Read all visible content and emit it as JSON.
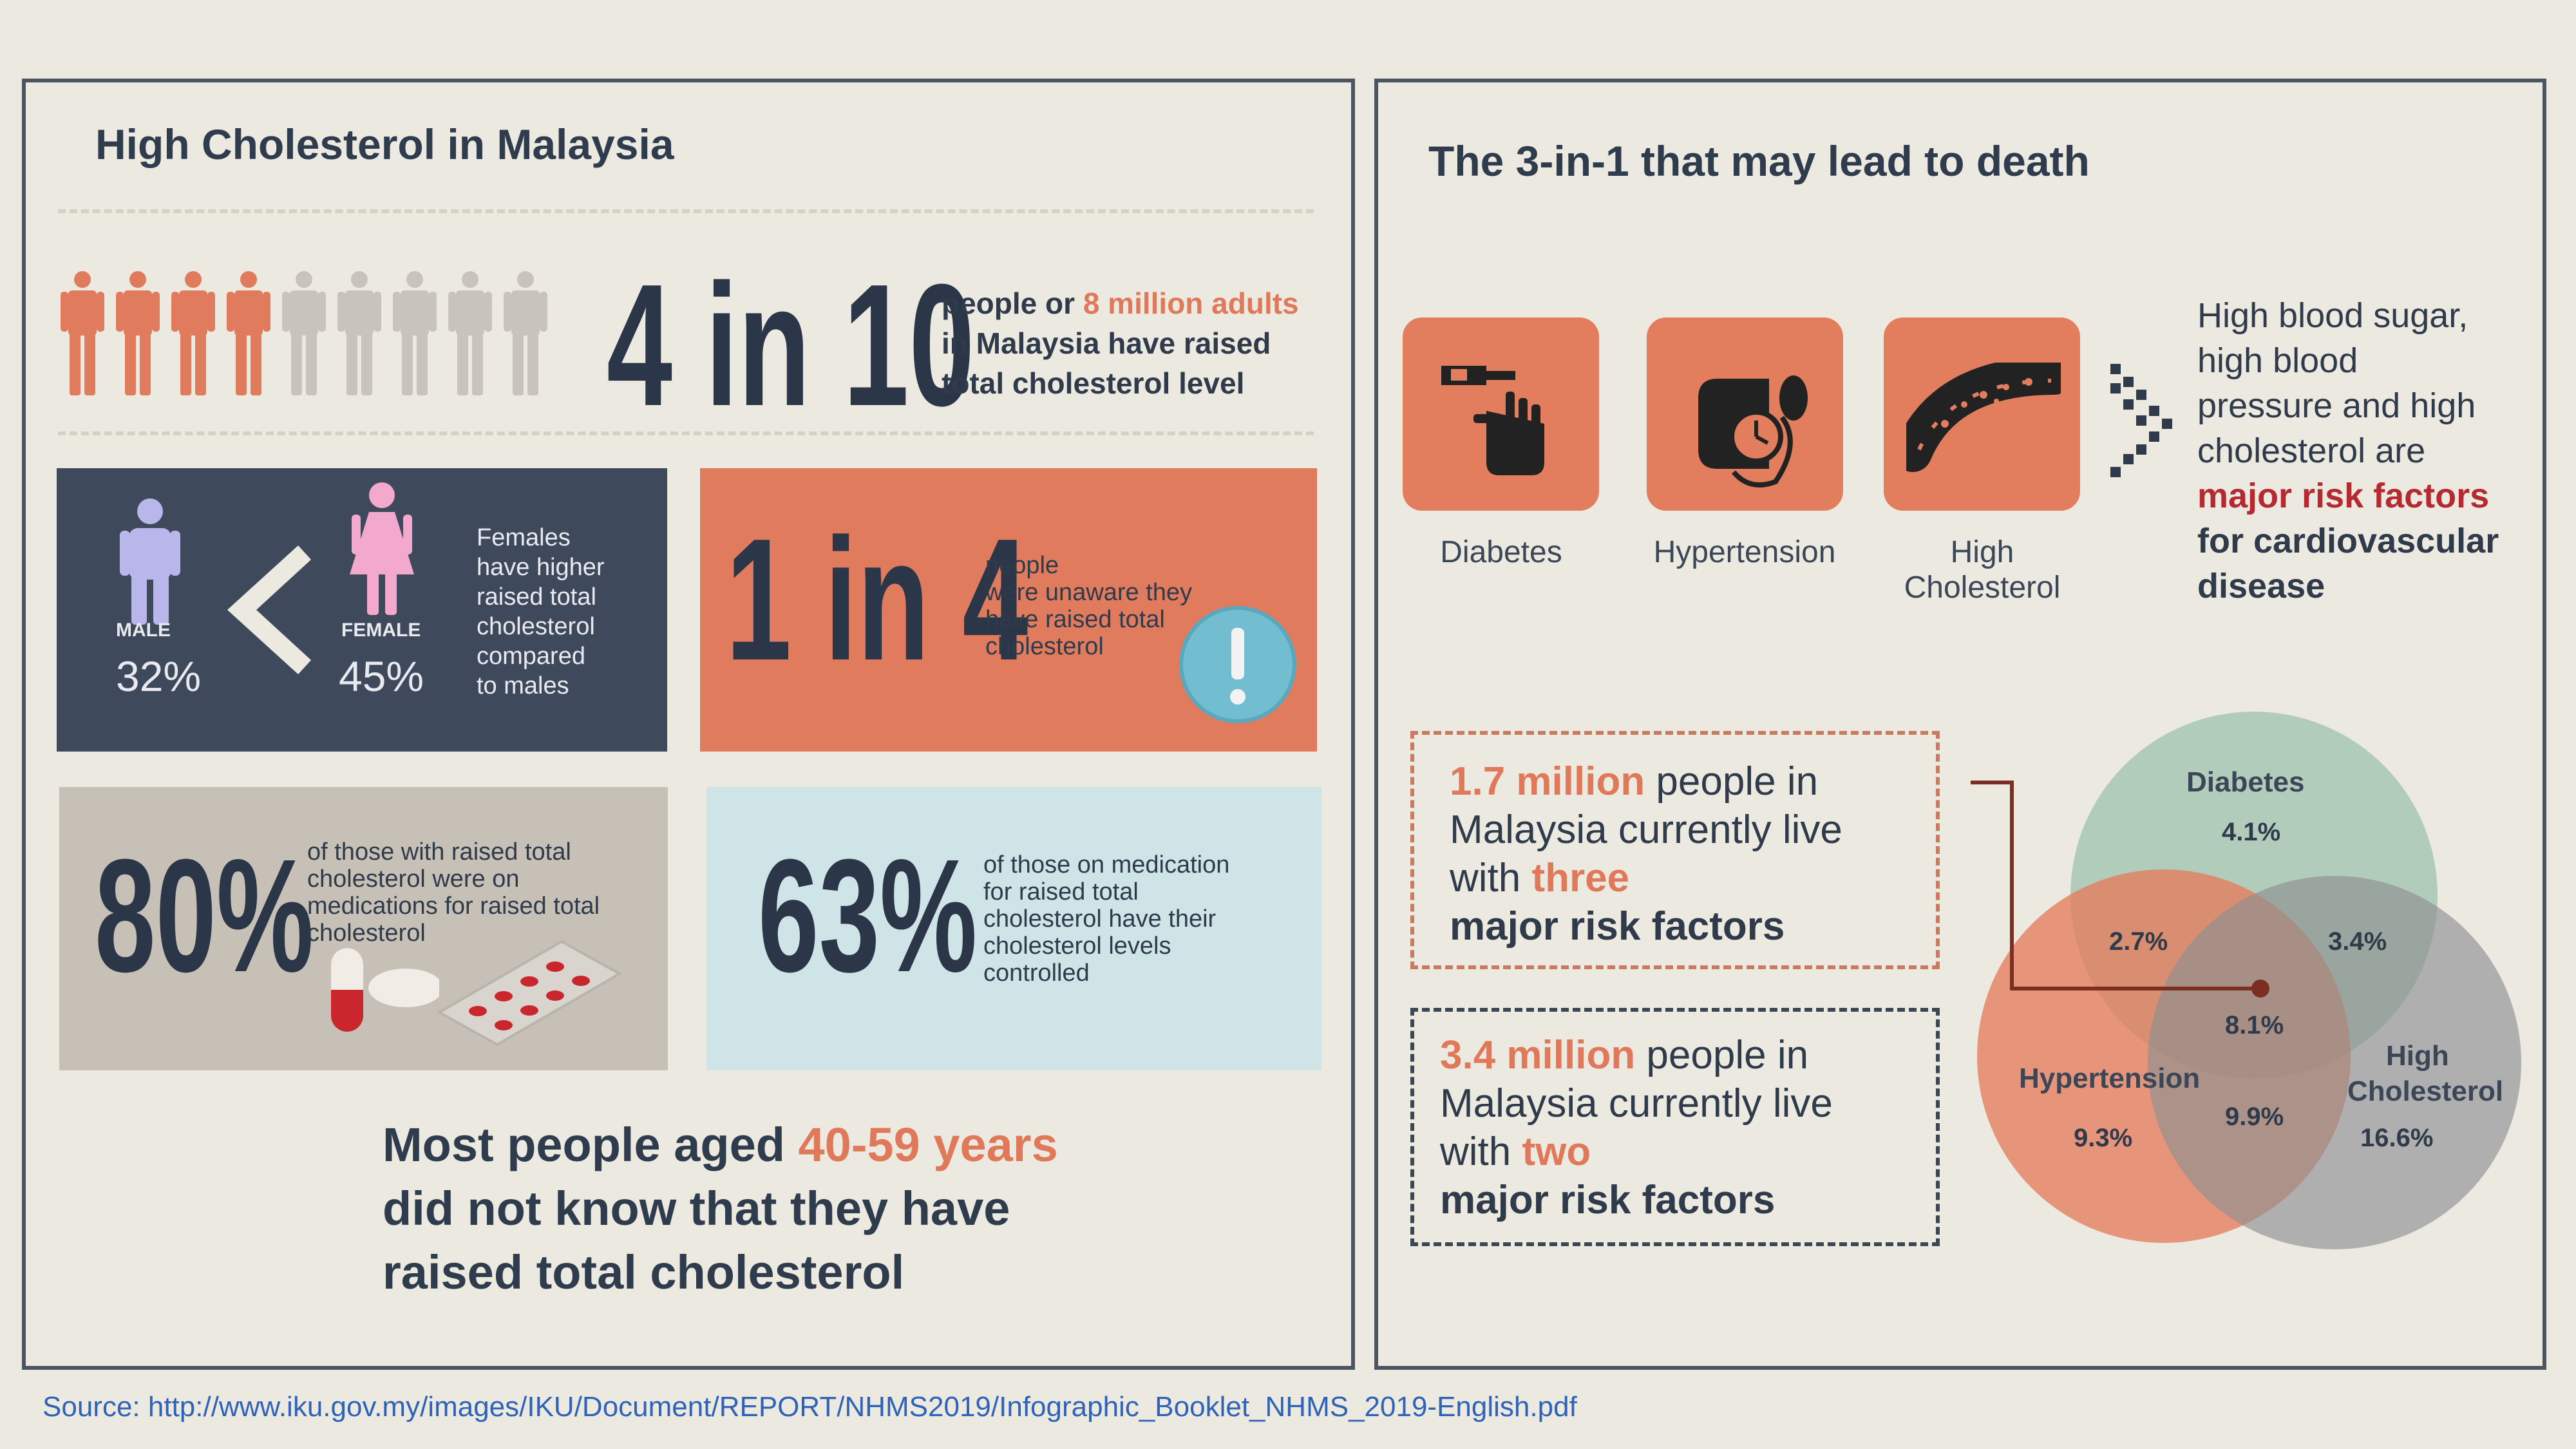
{
  "left": {
    "title": "High Cholesterol in Malaysia",
    "stat1": {
      "big": "4 in 10",
      "line1_a": "people or ",
      "line1_b": "8 million adults",
      "line2": "in Malaysia have raised",
      "line3": "total cholesterol level",
      "figures_highlighted": 4,
      "figures_total": 9
    },
    "gender": {
      "male_label": "MALE",
      "male_pct": "32%",
      "female_label": "FEMALE",
      "female_pct": "45%",
      "text": [
        "Females",
        "have higher",
        "raised total",
        "cholesterol",
        "compared",
        "to males"
      ]
    },
    "unaware": {
      "big": "1 in 4",
      "text": [
        "people",
        "were unaware they",
        "have raised total",
        "cholesterol"
      ]
    },
    "medication": {
      "big": "80%",
      "text": [
        "of those with raised total",
        "cholesterol were on",
        "medications for raised total",
        "cholesterol"
      ]
    },
    "controlled": {
      "big": "63%",
      "text": [
        "of those on medication",
        "for raised total",
        "cholesterol have their",
        "cholesterol levels",
        "controlled"
      ]
    },
    "age": {
      "line1_a": "Most people aged ",
      "line1_b": "40-59 years",
      "line2": "did not know that they have",
      "line3": "raised total cholesterol"
    }
  },
  "right": {
    "title": "The 3-in-1 that may lead to death",
    "icons": [
      {
        "label": "Diabetes",
        "icon": "diabetes-icon"
      },
      {
        "label": "Hypertension",
        "icon": "blood-pressure-icon"
      },
      {
        "label": "High Cholesterol",
        "label_lines": [
          "High",
          "Cholesterol"
        ],
        "icon": "artery-icon"
      }
    ],
    "risk_text": {
      "lines": [
        "High blood sugar,",
        "high blood",
        "pressure and high",
        "cholesterol are"
      ],
      "red": "major risk factors",
      "bold1": "for cardiovascular",
      "bold2": "disease"
    },
    "box1": {
      "num": "1.7 million",
      "rest1": " people in",
      "line2": "Malaysia currently live",
      "line3_a": "with ",
      "line3_b": "three",
      "line4": "major risk factors"
    },
    "box2": {
      "num": "3.4 million",
      "rest1": " people in",
      "line2": "Malaysia currently live",
      "line3_a": "with ",
      "line3_b": "two",
      "line4": "major risk factors"
    },
    "venn": {
      "diabetes_label": "Diabetes",
      "diabetes_pct": "4.1%",
      "hypertension_label": "Hypertension",
      "hypertension_pct": "9.3%",
      "cholesterol_label_1": "High",
      "cholesterol_label_2": "Cholesterol",
      "cholesterol_pct": "16.6%",
      "d_h": "2.7%",
      "d_c": "3.4%",
      "all_three": "8.1%",
      "h_c": "9.9%",
      "colors": {
        "diabetes": "#9fc1ae",
        "hypertension": "#e47c5c",
        "cholesterol": "#8e9192"
      }
    }
  },
  "source": "Source:  http://www.iku.gov.my/images/IKU/Document/REPORT/NHMS2019/Infographic_Booklet_NHMS_2019-English.pdf"
}
